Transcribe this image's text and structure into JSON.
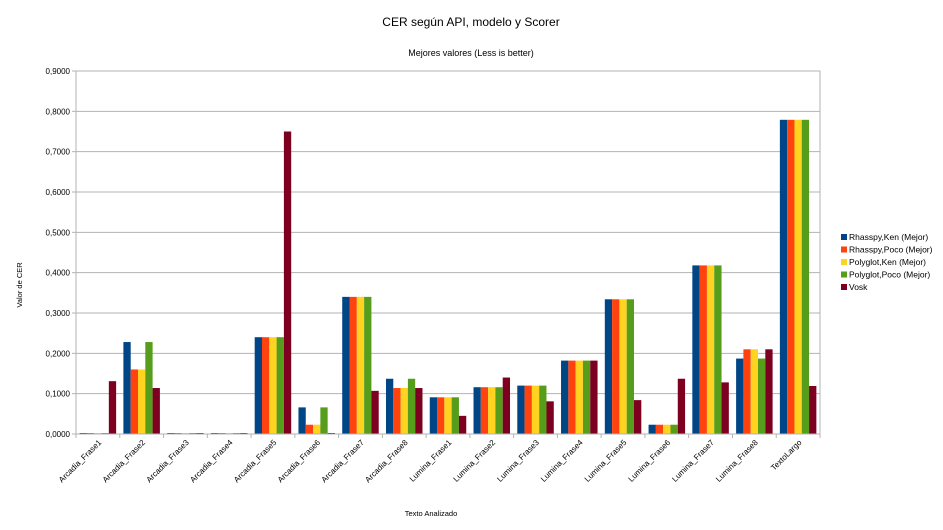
{
  "chart_data": {
    "type": "bar",
    "title": "CER según API, modelo y Scorer",
    "subtitle": "Mejores valores (Less is better)",
    "xlabel": "Texto Analizado",
    "ylabel": "Valor de CER",
    "ylim": [
      0,
      0.9
    ],
    "yticks": [
      "0,0000",
      "0,1000",
      "0,2000",
      "0,3000",
      "0,4000",
      "0,5000",
      "0,6000",
      "0,7000",
      "0,8000",
      "0,9000"
    ],
    "grid": true,
    "legend_position": "right",
    "categories": [
      "Arcadia_Frase1",
      "Arcadia_Frase2",
      "Arcadia_Frase3",
      "Arcadia_Frase4",
      "Arcadia_Frase5",
      "Arcadia_Frase6",
      "Arcadia_Frase7",
      "Arcadia_Frase8",
      "Lumina_Frase1",
      "Lumina_Frase2",
      "Lumina_Frase3",
      "Lumina_Frase4",
      "Lumina_Frase5",
      "Lumina_Frase6",
      "Lumina_Frase7",
      "Lumina_Frase8",
      "TextoLargo"
    ],
    "series": [
      {
        "name": "Rhasspy,Ken (Mejor)",
        "color": "#004586",
        "values": [
          0.001,
          0.228,
          0.001,
          0.001,
          0.24,
          0.066,
          0.34,
          0.137,
          0.091,
          0.116,
          0.12,
          0.182,
          0.334,
          0.023,
          0.418,
          0.187,
          0.779
        ]
      },
      {
        "name": "Rhasspy,Poco (Mejor)",
        "color": "#ff420e",
        "values": [
          0.001,
          0.16,
          0.001,
          0.001,
          0.24,
          0.023,
          0.34,
          0.114,
          0.091,
          0.116,
          0.12,
          0.182,
          0.334,
          0.023,
          0.418,
          0.21,
          0.779
        ]
      },
      {
        "name": "Polyglot,Ken (Mejor)",
        "color": "#ffd320",
        "values": [
          0.001,
          0.16,
          0.001,
          0.001,
          0.24,
          0.023,
          0.34,
          0.114,
          0.091,
          0.116,
          0.12,
          0.182,
          0.334,
          0.023,
          0.418,
          0.21,
          0.779
        ]
      },
      {
        "name": "Polyglot,Poco (Mejor)",
        "color": "#579d1c",
        "values": [
          0.001,
          0.228,
          0.001,
          0.001,
          0.24,
          0.066,
          0.34,
          0.137,
          0.091,
          0.116,
          0.12,
          0.182,
          0.334,
          0.023,
          0.418,
          0.187,
          0.779
        ]
      },
      {
        "name": "Vosk",
        "color": "#7e0021",
        "values": [
          0.131,
          0.114,
          0.001,
          0.001,
          0.75,
          0.001,
          0.107,
          0.114,
          0.045,
          0.14,
          0.081,
          0.182,
          0.084,
          0.137,
          0.128,
          0.21,
          0.119
        ]
      }
    ]
  }
}
